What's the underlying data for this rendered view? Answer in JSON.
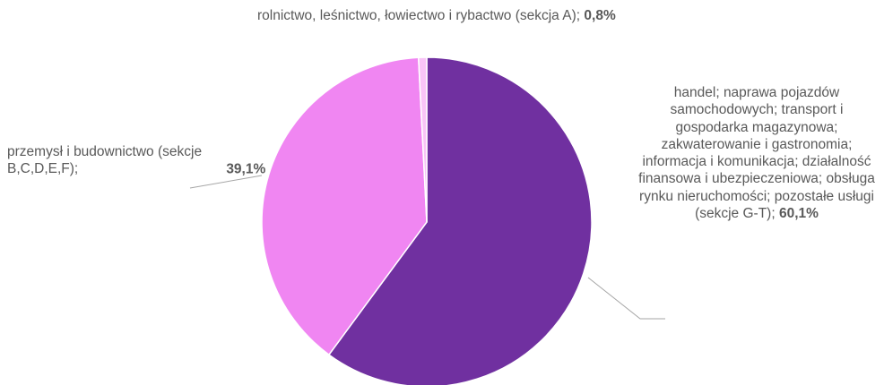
{
  "chart_data": {
    "type": "pie",
    "title": "",
    "start": "top",
    "direction": "clockwise",
    "slices": [
      {
        "label": "handel; naprawa pojazdów samochodowych; transport i gospodarka magazynowa; zakwaterowanie i gastronomia; informacja i komunikacja; działalność finansowa i ubezpieczeniowa; obsługa rynku nieruchomości; pozostałe usługi (sekcje G-T);",
        "value": 60.1,
        "value_label": "60,1%",
        "color": "#7030a0"
      },
      {
        "label": "przemysł i budownictwo (sekcje B,C,D,E,F);",
        "value": 39.1,
        "value_label": "39,1%",
        "color": "#f086f2"
      },
      {
        "label": "rolnictwo, leśnictwo, łowiectwo i rybactwo (sekcja A);",
        "value": 0.8,
        "value_label": "0,8%",
        "color": "#f9c4f7"
      }
    ]
  }
}
